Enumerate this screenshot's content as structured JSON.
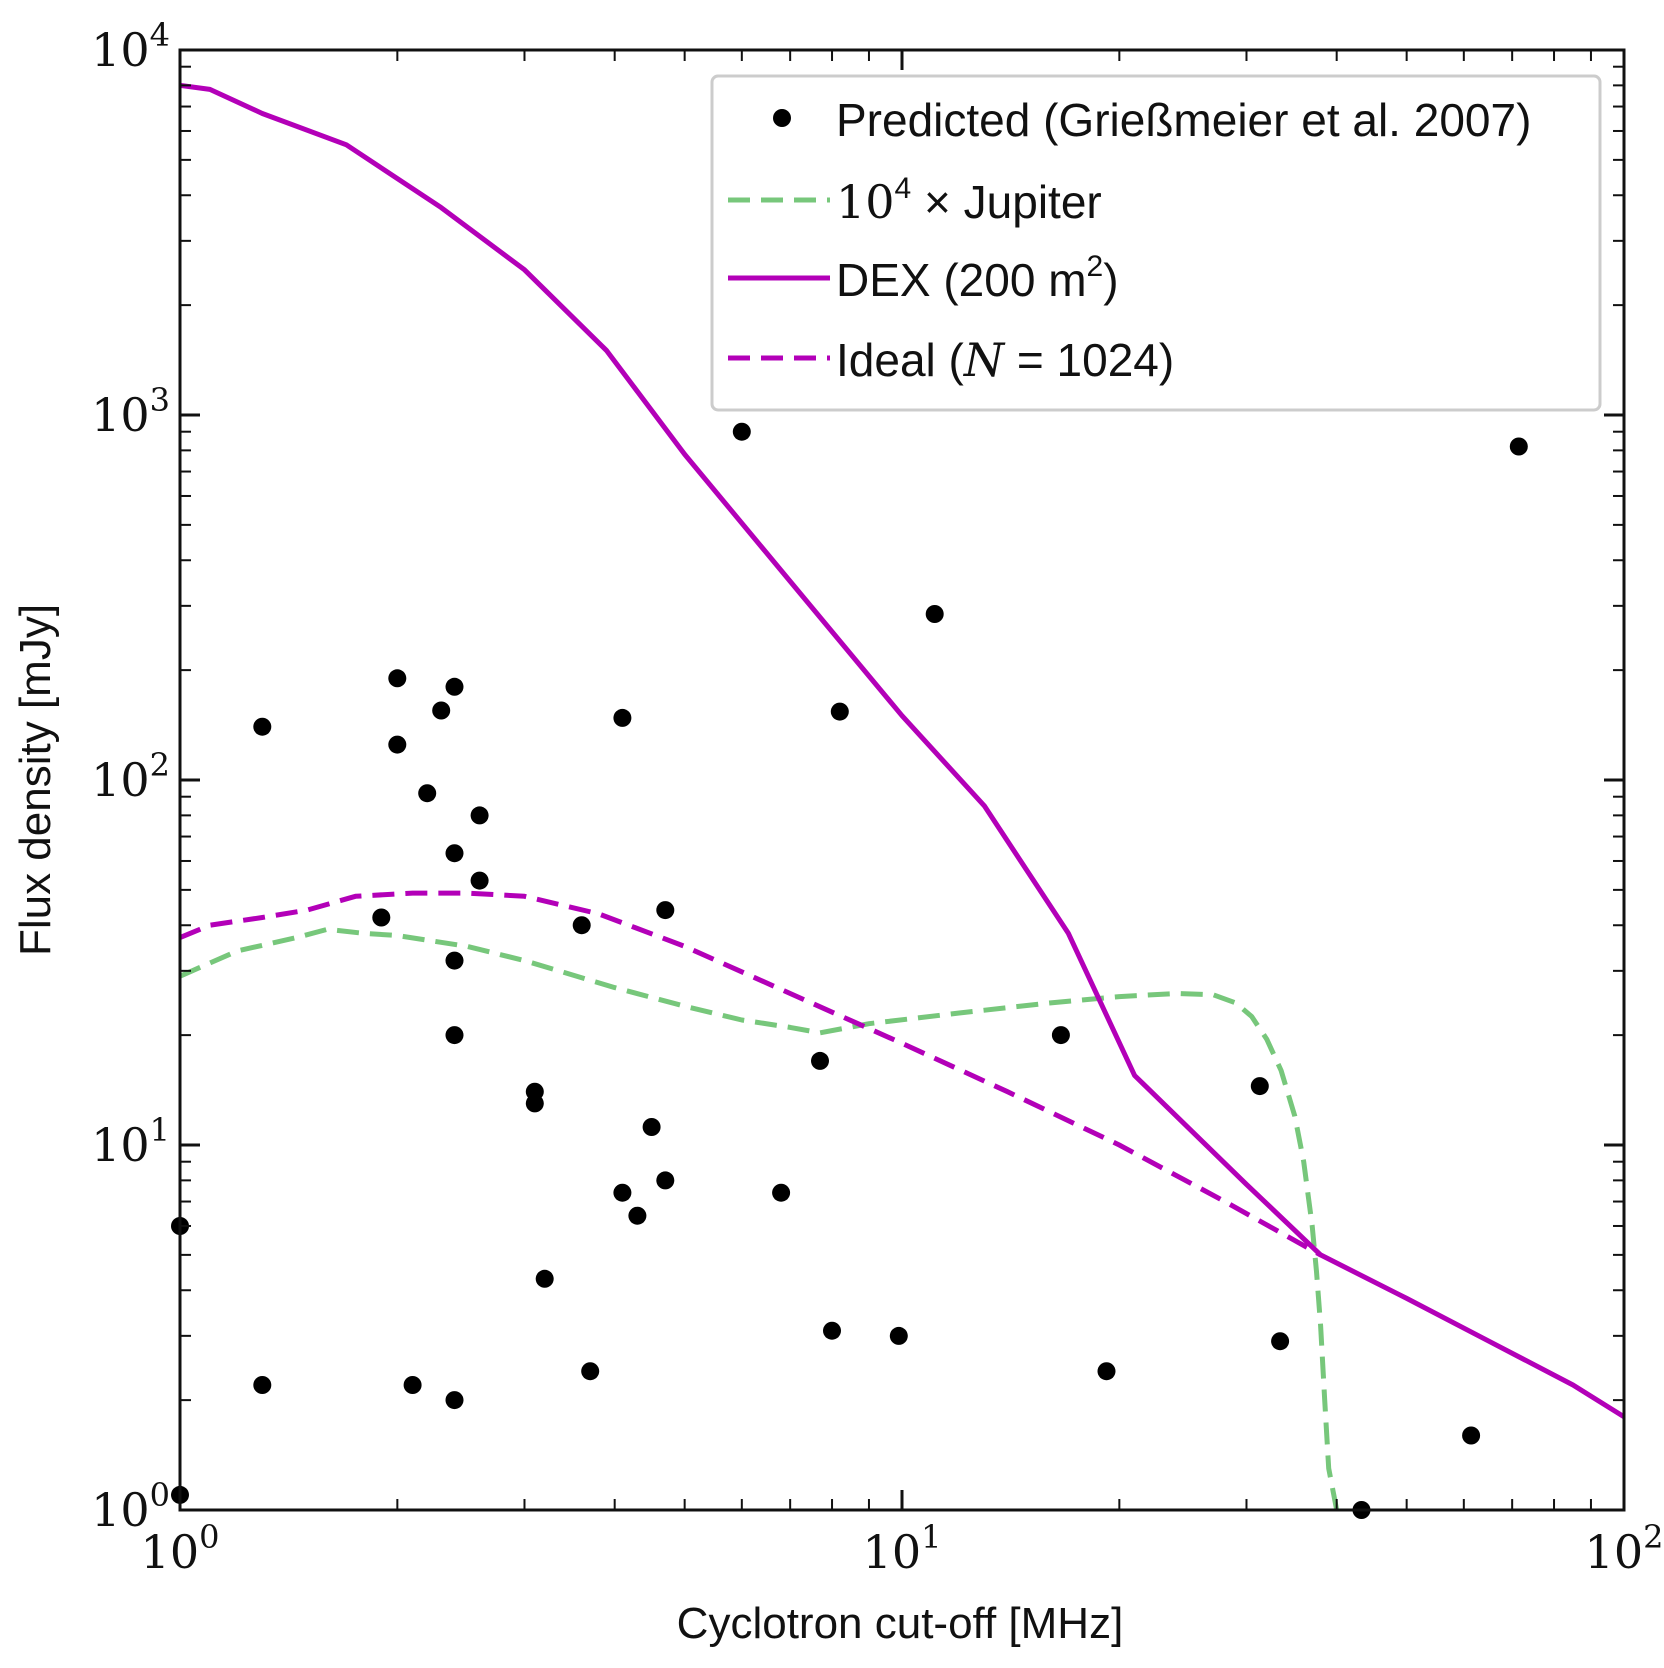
{
  "chart_data": {
    "type": "scatter",
    "title": "",
    "xlabel": "Cyclotron cut-off [MHz]",
    "ylabel": "Flux density [mJy]",
    "xscale": "log",
    "yscale": "log",
    "xlim": [
      1,
      100
    ],
    "ylim": [
      1,
      10000
    ],
    "grid": false,
    "legend_position": "top-right",
    "x_tick_labels": [
      {
        "value": 1,
        "base": "10",
        "exp": "0"
      },
      {
        "value": 10,
        "base": "10",
        "exp": "1"
      },
      {
        "value": 100,
        "base": "10",
        "exp": "2"
      }
    ],
    "y_tick_labels": [
      {
        "value": 1,
        "base": "10",
        "exp": "0"
      },
      {
        "value": 10,
        "base": "10",
        "exp": "1"
      },
      {
        "value": 100,
        "base": "10",
        "exp": "2"
      },
      {
        "value": 1000,
        "base": "10",
        "exp": "3"
      },
      {
        "value": 10000,
        "base": "10",
        "exp": "4"
      }
    ],
    "series": [
      {
        "name": "Predicted (Grießmeier et al. 2007)",
        "kind": "scatter",
        "color": "#000000",
        "points": [
          [
            1.0,
            1.1
          ],
          [
            1.0,
            6.0
          ],
          [
            1.3,
            2.2
          ],
          [
            1.3,
            140
          ],
          [
            1.9,
            42
          ],
          [
            2.0,
            190
          ],
          [
            2.0,
            125
          ],
          [
            2.1,
            2.2
          ],
          [
            2.2,
            92
          ],
          [
            2.3,
            155
          ],
          [
            2.4,
            180
          ],
          [
            2.4,
            63
          ],
          [
            2.4,
            32
          ],
          [
            2.4,
            20
          ],
          [
            2.4,
            2.0
          ],
          [
            2.6,
            80
          ],
          [
            2.6,
            53
          ],
          [
            3.1,
            14
          ],
          [
            3.1,
            13
          ],
          [
            3.2,
            4.3
          ],
          [
            3.6,
            40
          ],
          [
            3.7,
            2.4
          ],
          [
            4.1,
            148
          ],
          [
            4.1,
            7.4
          ],
          [
            4.3,
            6.4
          ],
          [
            4.5,
            11.2
          ],
          [
            4.7,
            44
          ],
          [
            4.7,
            8.0
          ],
          [
            6.0,
            900
          ],
          [
            6.8,
            7.4
          ],
          [
            7.7,
            17
          ],
          [
            8.0,
            3.1
          ],
          [
            8.2,
            154
          ],
          [
            9.9,
            3.0
          ],
          [
            11.1,
            285
          ],
          [
            16.6,
            20
          ],
          [
            19.2,
            2.4
          ],
          [
            31.3,
            14.5
          ],
          [
            33.4,
            2.9
          ],
          [
            43.3,
            1.0
          ],
          [
            61.4,
            1.6
          ],
          [
            71.5,
            820
          ]
        ]
      },
      {
        "name": "10^4 × Jupiter",
        "kind": "line",
        "style": "dashed",
        "color": "#77c77b",
        "x": [
          1.0,
          1.2,
          1.45,
          1.6,
          1.8,
          2.0,
          2.5,
          3.0,
          4.0,
          5.0,
          6.0,
          7.0,
          7.7,
          9.0,
          12.0,
          16.0,
          20.0,
          24.0,
          27.0,
          29.0,
          30.5,
          32.0,
          33.5,
          35.0,
          36.0,
          37.0,
          37.5,
          38.0,
          38.5,
          39.0,
          40.0
        ],
        "y": [
          29,
          34,
          37,
          39,
          38,
          37.5,
          35,
          32,
          27,
          24,
          22,
          21,
          20.3,
          21.5,
          23,
          24.5,
          25.5,
          26,
          25.8,
          24.5,
          22.5,
          19.5,
          16,
          12,
          9,
          6,
          4.5,
          3.2,
          2.0,
          1.3,
          1.0
        ]
      },
      {
        "name": "DEX (200 m^2)",
        "kind": "line",
        "style": "solid",
        "color": "#b300b8",
        "x": [
          1.0,
          1.1,
          1.3,
          1.7,
          2.3,
          3.0,
          3.9,
          5.0,
          7.0,
          10.0,
          13.0,
          17.0,
          21.0,
          30.0,
          38.0,
          50.0,
          65.0,
          85.0,
          100.0
        ],
        "y": [
          8000,
          7800,
          6700,
          5500,
          3700,
          2500,
          1500,
          780,
          350,
          150,
          85,
          38,
          15.5,
          7.8,
          5.0,
          3.8,
          2.9,
          2.2,
          1.8
        ]
      },
      {
        "name": "Ideal (N = 1024)",
        "kind": "line",
        "style": "dashed",
        "color": "#b300b8",
        "x": [
          1.0,
          1.1,
          1.3,
          1.5,
          1.75,
          2.1,
          2.5,
          3.0,
          3.8,
          5.0,
          7.0,
          10.0,
          14.0,
          20.0,
          28.0,
          38.0
        ],
        "y": [
          37,
          40,
          42,
          44,
          48,
          49,
          49,
          48,
          43,
          35,
          26,
          19,
          14,
          10,
          7,
          5
        ]
      }
    ]
  },
  "legend": {
    "entries": [
      {
        "prefix": "Predicted (Grießmeier et al. 2007)",
        "math": "",
        "sup": "",
        "suffix": ""
      },
      {
        "prefix": "",
        "math": "10",
        "sup": "4",
        "suffix": " × Jupiter"
      },
      {
        "prefix": "DEX (200 m",
        "math": "",
        "sup": "2",
        "suffix": ")"
      },
      {
        "prefix": "Ideal (",
        "math": "N",
        "sup": "",
        "suffix": " = 1024)"
      }
    ]
  }
}
